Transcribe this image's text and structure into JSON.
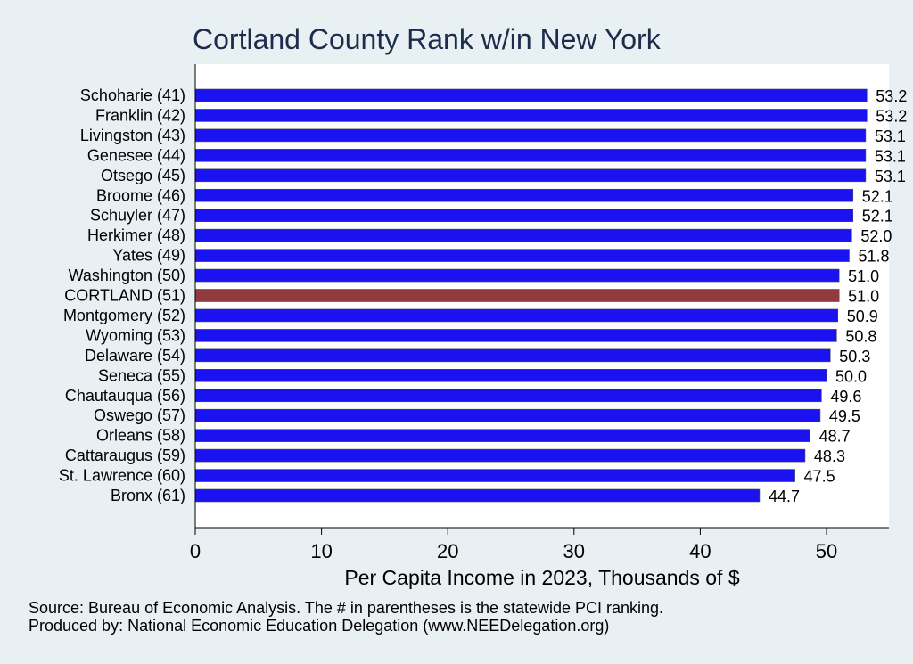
{
  "chart_data": {
    "type": "bar",
    "orientation": "horizontal",
    "title": "Cortland County Rank w/in New York",
    "xlabel": "Per Capita Income in 2023, Thousands of $",
    "categories": [
      "Schoharie (41)",
      "Franklin (42)",
      "Livingston (43)",
      "Genesee (44)",
      "Otsego (45)",
      "Broome (46)",
      "Schuyler (47)",
      "Herkimer (48)",
      "Yates (49)",
      "Washington (50)",
      "CORTLAND (51)",
      "Montgomery (52)",
      "Wyoming (53)",
      "Delaware (54)",
      "Seneca (55)",
      "Chautauqua (56)",
      "Oswego (57)",
      "Orleans (58)",
      "Cattaraugus (59)",
      "St. Lawrence (60)",
      "Bronx (61)"
    ],
    "values": [
      53.2,
      53.2,
      53.1,
      53.1,
      53.1,
      52.1,
      52.1,
      52.0,
      51.8,
      51.0,
      51.0,
      50.9,
      50.8,
      50.3,
      50.0,
      49.6,
      49.5,
      48.7,
      48.3,
      47.5,
      44.7
    ],
    "value_labels": [
      "53.2",
      "53.2",
      "53.1",
      "53.1",
      "53.1",
      "52.1",
      "52.1",
      "52.0",
      "51.8",
      "51.0",
      "51.0",
      "50.9",
      "50.8",
      "50.3",
      "50.0",
      "49.6",
      "49.5",
      "48.7",
      "48.3",
      "47.5",
      "44.7"
    ],
    "highlight_category": "CORTLAND (51)",
    "xlim": [
      0,
      55
    ],
    "xticks": [
      0,
      10,
      20,
      30,
      40,
      50
    ],
    "xtick_labels": [
      "0",
      "10",
      "20",
      "30",
      "40",
      "50"
    ],
    "grid": false,
    "colors": {
      "bar": "#1a12f0",
      "highlight": "#913b3e",
      "plot_background": "#ffffff",
      "page_background": "#e9f0f3",
      "title": "#1c2c4c"
    }
  },
  "footer": {
    "source": "Source: Bureau of Economic Analysis. The # in parentheses is the statewide PCI ranking.",
    "producer": "Produced by: National Economic Education Delegation (www.NEEDelegation.org)"
  }
}
